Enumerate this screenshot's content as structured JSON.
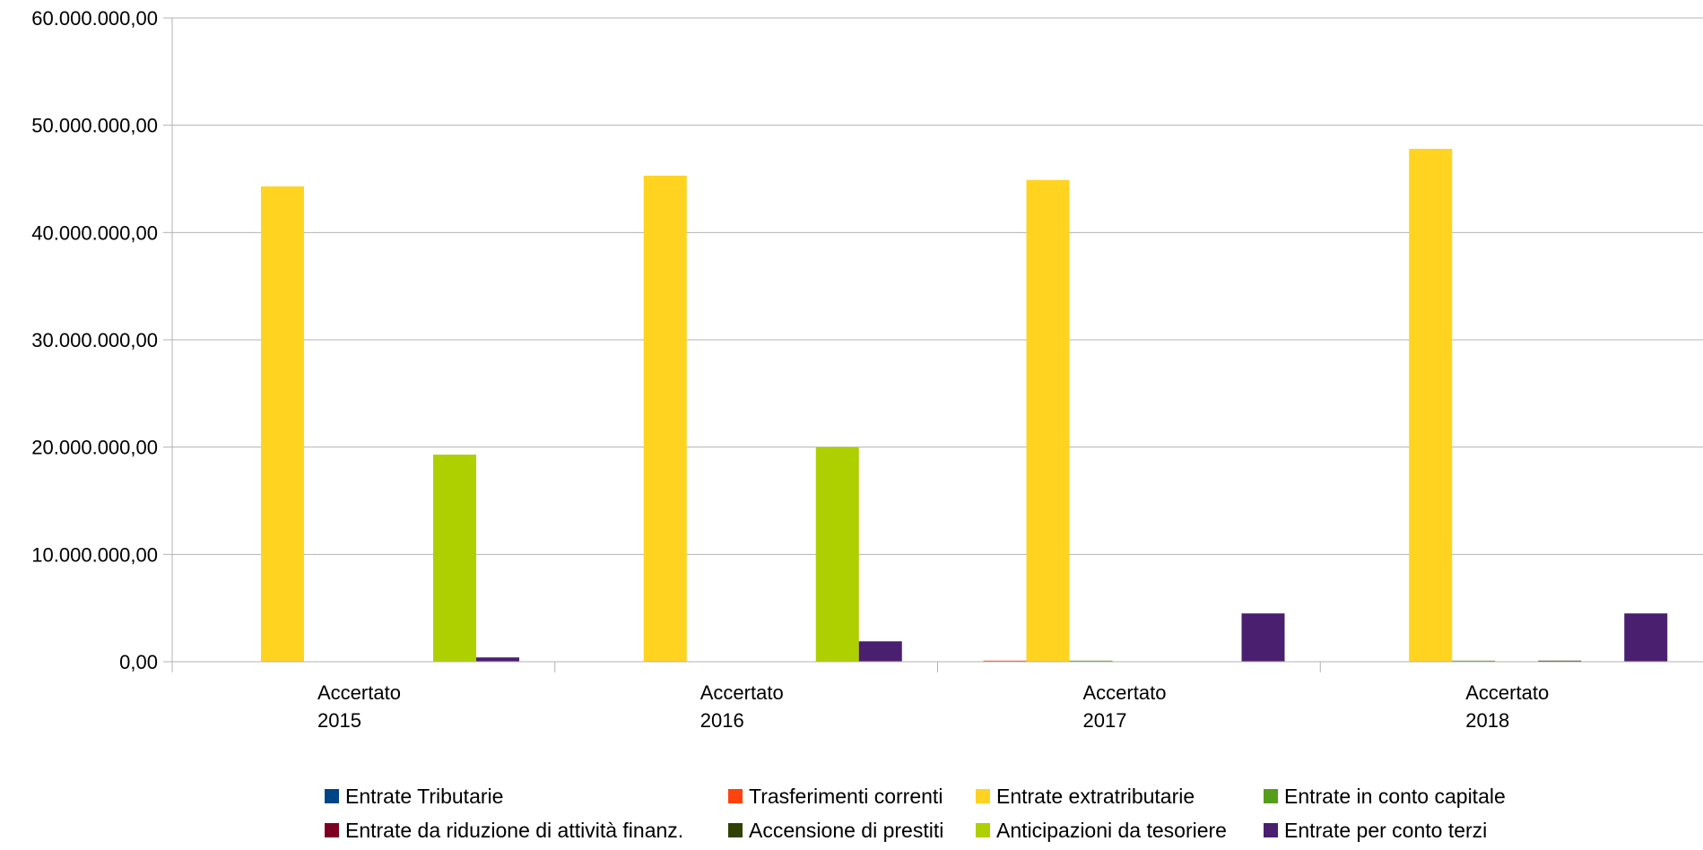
{
  "chart_data": {
    "type": "bar",
    "title": "",
    "xlabel": "",
    "ylabel": "",
    "ylim": [
      0,
      60000000
    ],
    "y_ticks": [
      {
        "value": 0,
        "label": "0,00"
      },
      {
        "value": 10000000,
        "label": "10.000.000,00"
      },
      {
        "value": 20000000,
        "label": "20.000.000,00"
      },
      {
        "value": 30000000,
        "label": "30.000.000,00"
      },
      {
        "value": 40000000,
        "label": "40.000.000,00"
      },
      {
        "value": 50000000,
        "label": "50.000.000,00"
      },
      {
        "value": 60000000,
        "label": "60.000.000,00"
      }
    ],
    "categories": [
      [
        "Accertato",
        "2015"
      ],
      [
        "Accertato",
        "2016"
      ],
      [
        "Accertato",
        "2017"
      ],
      [
        "Accertato",
        "2018"
      ]
    ],
    "grid": true,
    "legend_position": "bottom",
    "series": [
      {
        "name": "Entrate Tributarie",
        "color": "#004586",
        "values": [
          0,
          0,
          0,
          0
        ]
      },
      {
        "name": "Trasferimenti correnti",
        "color": "#ff420e",
        "values": [
          0,
          0,
          100000,
          0
        ]
      },
      {
        "name": "Entrate extratributarie",
        "color": "#ffd320",
        "values": [
          44300000,
          45300000,
          44900000,
          47800000
        ]
      },
      {
        "name": "Entrate in conto capitale",
        "color": "#579d1c",
        "values": [
          0,
          0,
          60000,
          50000
        ]
      },
      {
        "name": "Entrate da riduzione di attività finanz.",
        "color": "#7e0021",
        "values": [
          0,
          0,
          0,
          0
        ]
      },
      {
        "name": "Accensione di prestiti",
        "color": "#314004",
        "values": [
          0,
          0,
          0,
          80000
        ]
      },
      {
        "name": "Anticipazioni da tesoriere",
        "color": "#aecf00",
        "values": [
          19300000,
          20000000,
          0,
          0
        ]
      },
      {
        "name": "Entrate per conto terzi",
        "color": "#4b1f6f",
        "values": [
          400000,
          1900000,
          4500000,
          4500000
        ]
      }
    ]
  }
}
